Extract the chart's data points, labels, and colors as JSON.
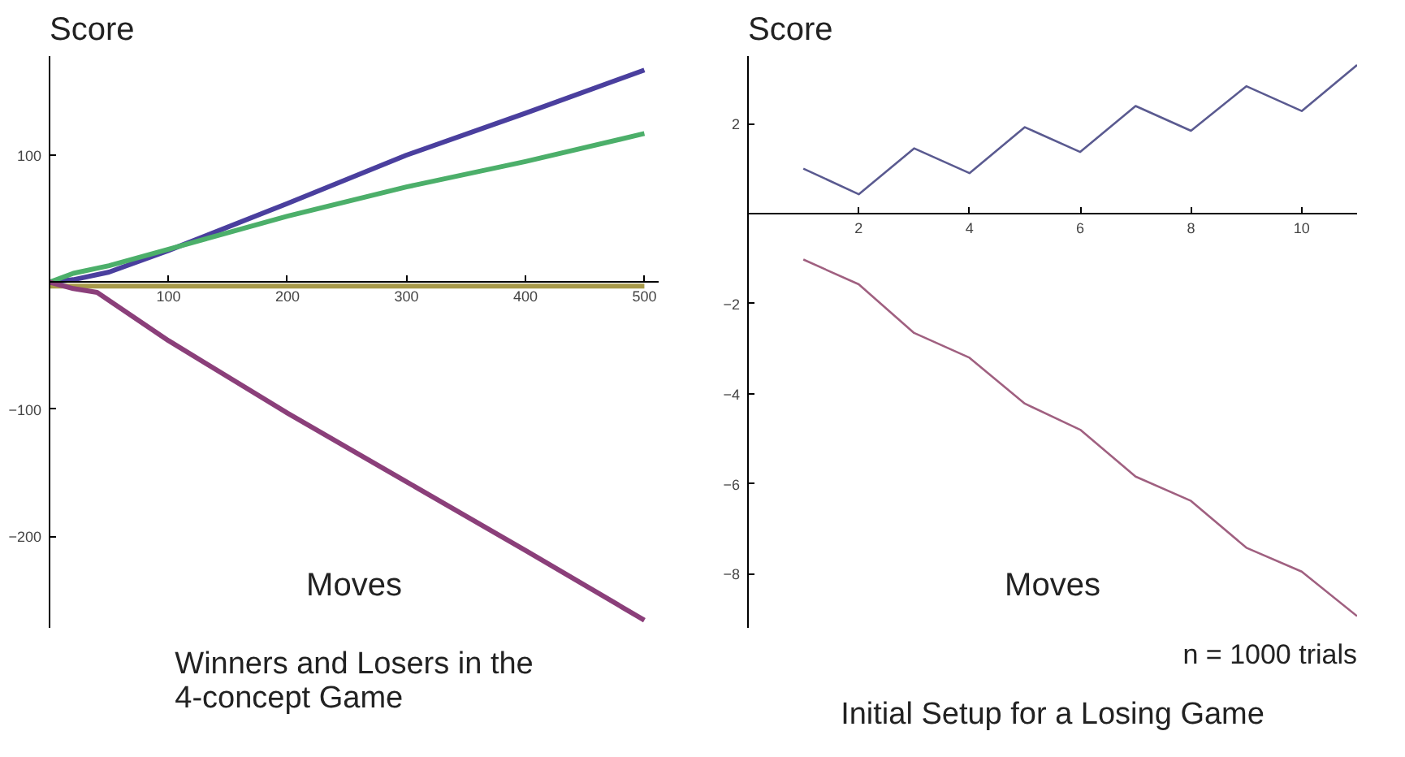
{
  "chart_data": [
    {
      "type": "line",
      "title": "Winners and Losers in the\n4-concept Game",
      "ylabel": "Score",
      "xlabel": "Moves",
      "xlim": [
        0,
        512
      ],
      "ylim": [
        -272,
        178
      ],
      "xticks": [
        100,
        200,
        300,
        400,
        500
      ],
      "yticks": [
        -200,
        -100,
        100
      ],
      "grid": false,
      "line_style": "solid",
      "series": [
        {
          "color": "#a89a4a",
          "x": [
            0,
            500
          ],
          "values": [
            -3,
            -3
          ]
        },
        {
          "color": "#4a3f9e",
          "x": [
            0,
            20,
            50,
            100,
            200,
            300,
            400,
            500
          ],
          "values": [
            0,
            2,
            8,
            25,
            62,
            100,
            133,
            167
          ]
        },
        {
          "color": "#4caf6a",
          "x": [
            0,
            20,
            50,
            100,
            200,
            300,
            400,
            500
          ],
          "values": [
            0,
            7,
            13,
            26,
            52,
            75,
            95,
            117
          ]
        },
        {
          "color": "#8b3f7a",
          "x": [
            0,
            20,
            40,
            100,
            200,
            300,
            400,
            500
          ],
          "values": [
            0,
            -5,
            -8,
            -46,
            -103,
            -157,
            -211,
            -266
          ]
        }
      ]
    },
    {
      "type": "line",
      "title": "Initial Setup for a Losing Game",
      "ylabel": "Score",
      "xlabel": "Moves",
      "xlim": [
        0,
        11
      ],
      "ylim": [
        -9.2,
        3.5
      ],
      "xticks": [
        2,
        4,
        6,
        8,
        10
      ],
      "yticks": [
        -8,
        -6,
        -4,
        -2,
        2
      ],
      "grid": false,
      "line_style": "solid",
      "annotations": [
        "n = 1000 trials"
      ],
      "series": [
        {
          "color": "#5a5a90",
          "x": [
            1,
            2,
            3,
            4,
            5,
            6,
            7,
            8,
            9,
            10,
            11
          ],
          "values": [
            1.0,
            0.43,
            1.45,
            0.9,
            1.92,
            1.37,
            2.39,
            1.84,
            2.83,
            2.28,
            3.3
          ]
        },
        {
          "color": "#a06080",
          "x": [
            1,
            2,
            3,
            4,
            5,
            6,
            7,
            8,
            9,
            10,
            11
          ],
          "values": [
            -1.02,
            -1.57,
            -2.65,
            -3.2,
            -4.22,
            -4.8,
            -5.84,
            -6.38,
            -7.42,
            -7.95,
            -8.94
          ]
        }
      ]
    }
  ]
}
